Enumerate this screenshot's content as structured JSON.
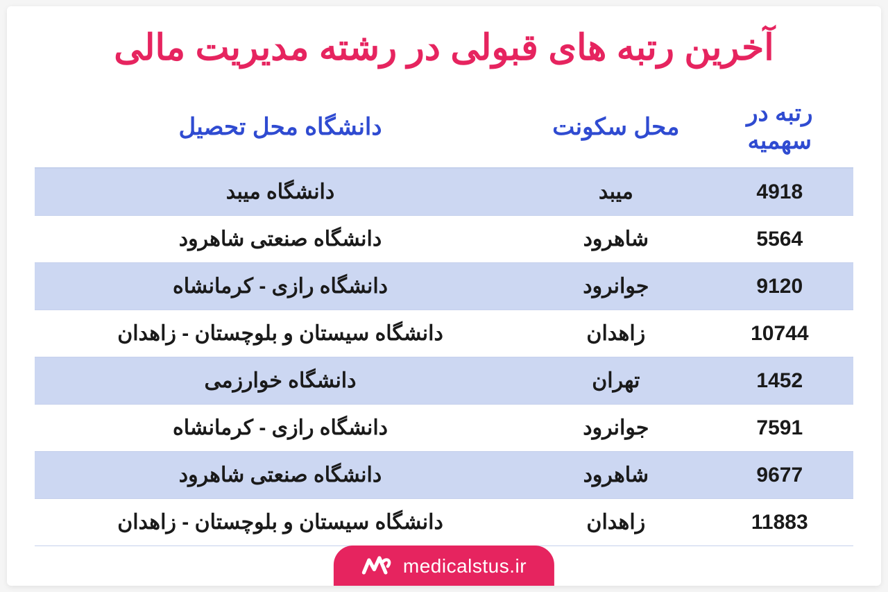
{
  "colors": {
    "accent": "#e6245f",
    "header_text": "#2f4bd1",
    "row_alt_bg": "#ccd7f2",
    "row_border": "#c5d0ec",
    "body_text": "#1a1a1a",
    "card_bg": "#ffffff",
    "page_bg": "#f5f5f5",
    "brand_text": "#ffffff"
  },
  "title": "آخرین رتبه های قبولی در رشته مدیریت مالی",
  "table": {
    "type": "table",
    "columns": [
      {
        "key": "rank",
        "label": "رتبه در سهمیه",
        "width_pct": 18,
        "align": "center"
      },
      {
        "key": "location",
        "label": "محل سکونت",
        "width_pct": 22,
        "align": "center"
      },
      {
        "key": "university",
        "label": "دانشگاه محل تحصیل",
        "width_pct": 60,
        "align": "center"
      }
    ],
    "header_fontsize": 34,
    "cell_fontsize": 30,
    "rows": [
      {
        "rank": "4918",
        "location": "میبد",
        "university": "دانشگاه میبد"
      },
      {
        "rank": "5564",
        "location": "شاهرود",
        "university": "دانشگاه صنعتی شاهرود"
      },
      {
        "rank": "9120",
        "location": "جوانرود",
        "university": "دانشگاه رازی - کرمانشاه"
      },
      {
        "rank": "10744",
        "location": "زاهدان",
        "university": "دانشگاه سیستان و بلوچستان - زاهدان"
      },
      {
        "rank": "1452",
        "location": "تهران",
        "university": "دانشگاه خوارزمی"
      },
      {
        "rank": "7591",
        "location": "جوانرود",
        "university": "دانشگاه رازی - کرمانشاه"
      },
      {
        "rank": "9677",
        "location": "شاهرود",
        "university": "دانشگاه صنعتی شاهرود"
      },
      {
        "rank": "11883",
        "location": "زاهدان",
        "university": "دانشگاه سیستان و بلوچستان - زاهدان"
      }
    ]
  },
  "brand": {
    "site": "medicalstus.ir",
    "logo_name": "medicalstus-logo"
  }
}
